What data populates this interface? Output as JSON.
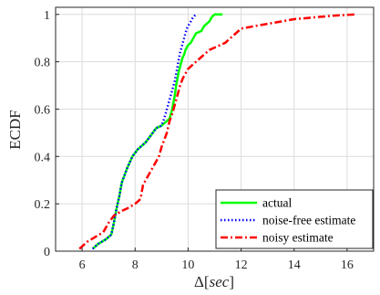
{
  "chart_data": {
    "type": "line",
    "xlabel": "Δ[sec]",
    "xlabel_prefix": "Δ[",
    "xlabel_italic": "sec",
    "xlabel_suffix": "]",
    "ylabel": "ECDF",
    "xlim": [
      5,
      17
    ],
    "ylim": [
      0,
      1.03
    ],
    "x_ticks": [
      6,
      8,
      10,
      12,
      14,
      16
    ],
    "y_ticks": [
      0,
      0.2,
      0.4,
      0.6,
      0.8,
      1
    ],
    "x_tick_labels": [
      "6",
      "8",
      "10",
      "12",
      "14",
      "16"
    ],
    "y_tick_labels": [
      "0",
      "0.2",
      "0.4",
      "0.6",
      "0.8",
      "1"
    ],
    "grid": true,
    "legend_position": "bottom-right",
    "series": [
      {
        "name": "actual",
        "color": "#00ff00",
        "style": "solid",
        "x": [
          6.4,
          6.6,
          6.9,
          7.1,
          7.2,
          7.3,
          7.4,
          7.5,
          7.6,
          7.7,
          7.9,
          8.1,
          8.2,
          8.4,
          8.6,
          8.8,
          9.0,
          9.1,
          9.3,
          9.4,
          9.5,
          9.55,
          9.6,
          9.65,
          9.7,
          9.75,
          9.8,
          9.85,
          9.9,
          9.95,
          10.0,
          10.1,
          10.2,
          10.3,
          10.5,
          10.6,
          10.7,
          10.8,
          10.9,
          11.0,
          11.3
        ],
        "y": [
          0.01,
          0.03,
          0.05,
          0.07,
          0.12,
          0.18,
          0.23,
          0.29,
          0.32,
          0.35,
          0.4,
          0.43,
          0.44,
          0.46,
          0.49,
          0.52,
          0.53,
          0.54,
          0.56,
          0.6,
          0.66,
          0.7,
          0.73,
          0.76,
          0.78,
          0.8,
          0.82,
          0.83,
          0.85,
          0.86,
          0.87,
          0.88,
          0.9,
          0.92,
          0.93,
          0.95,
          0.96,
          0.97,
          0.99,
          1.0,
          1.0
        ]
      },
      {
        "name": "noise-free estimate",
        "color": "#0000ff",
        "style": "dotted",
        "x": [
          6.4,
          6.6,
          6.9,
          7.1,
          7.2,
          7.3,
          7.4,
          7.5,
          7.6,
          7.7,
          7.9,
          8.1,
          8.2,
          8.4,
          8.6,
          8.8,
          9.0,
          9.1,
          9.2,
          9.3,
          9.4,
          9.5,
          9.55,
          9.6,
          9.65,
          9.7,
          9.75,
          9.8,
          9.85,
          9.9,
          9.95,
          10.0,
          10.1,
          10.2,
          10.3
        ],
        "y": [
          0.01,
          0.03,
          0.05,
          0.07,
          0.12,
          0.18,
          0.23,
          0.29,
          0.32,
          0.35,
          0.4,
          0.43,
          0.44,
          0.46,
          0.49,
          0.52,
          0.53,
          0.56,
          0.6,
          0.64,
          0.68,
          0.72,
          0.75,
          0.78,
          0.81,
          0.84,
          0.86,
          0.88,
          0.9,
          0.92,
          0.94,
          0.95,
          0.97,
          0.99,
          1.0
        ]
      },
      {
        "name": "noisy estimate",
        "color": "#ff0000",
        "style": "dashdot",
        "x": [
          5.9,
          6.2,
          6.5,
          6.8,
          7.0,
          7.2,
          7.5,
          7.7,
          8.0,
          8.2,
          8.3,
          8.5,
          8.7,
          8.9,
          9.0,
          9.1,
          9.2,
          9.3,
          9.4,
          9.5,
          9.6,
          9.7,
          9.8,
          9.9,
          10.0,
          10.2,
          10.4,
          10.6,
          10.8,
          11.0,
          11.2,
          11.4,
          11.6,
          11.8,
          12.0,
          12.5,
          13.0,
          13.5,
          14.0,
          14.5,
          15.0,
          15.5,
          16.3
        ],
        "y": [
          0.01,
          0.04,
          0.06,
          0.08,
          0.12,
          0.15,
          0.17,
          0.18,
          0.2,
          0.22,
          0.28,
          0.32,
          0.36,
          0.4,
          0.44,
          0.47,
          0.5,
          0.55,
          0.58,
          0.62,
          0.66,
          0.7,
          0.73,
          0.75,
          0.77,
          0.79,
          0.81,
          0.83,
          0.85,
          0.86,
          0.87,
          0.88,
          0.9,
          0.92,
          0.94,
          0.95,
          0.96,
          0.97,
          0.98,
          0.985,
          0.99,
          0.995,
          1.0
        ]
      }
    ]
  }
}
